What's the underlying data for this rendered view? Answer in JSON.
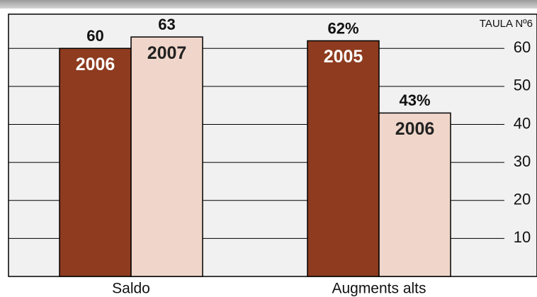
{
  "chart_data": {
    "type": "bar",
    "label": "TAULA Nº6",
    "groups": [
      {
        "name": "Saldo",
        "bars": [
          {
            "name": "2006",
            "value": 60,
            "color": "#8e3b1f"
          },
          {
            "name": "2007",
            "value": 63,
            "color": "#f0d6ca"
          }
        ]
      },
      {
        "name": "Augments alts",
        "bars": [
          {
            "name": "2005",
            "value": 62,
            "value_label": "62%",
            "color": "#8e3b1f"
          },
          {
            "name": "2006",
            "value": 43,
            "value_label": "43%",
            "color": "#f0d6ca"
          }
        ]
      }
    ],
    "ylim": [
      0,
      69
    ],
    "yticks": [
      10,
      20,
      30,
      40,
      50,
      60
    ],
    "grid": true
  }
}
